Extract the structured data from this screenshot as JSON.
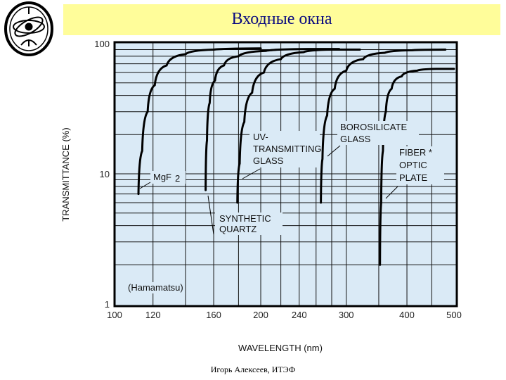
{
  "slide": {
    "title": "Входные окна",
    "footer": "Игорь Алексеев, ИТЭФ",
    "logo_icon": "itep-logo-icon"
  },
  "chart_data": {
    "type": "line",
    "title": "",
    "xlabel": "WAVELENGTH (nm)",
    "ylabel": "TRANSMITTANCE (%)",
    "xscale": "log",
    "yscale": "log",
    "xlim": [
      100,
      500
    ],
    "ylim": [
      1,
      100
    ],
    "xticks": [
      100,
      120,
      160,
      200,
      240,
      300,
      400,
      500
    ],
    "xtick_labels": [
      "100",
      "120",
      "160",
      "200",
      "240",
      "300",
      "400",
      "500"
    ],
    "yticks": [
      1,
      10,
      100
    ],
    "ytick_labels": [
      "1",
      "10",
      "100"
    ],
    "grid": true,
    "source_note": "(Hamamatsu)",
    "series": [
      {
        "name": "MgF2",
        "label_lines": [
          "MgF",
          "2"
        ],
        "points": [
          [
            112,
            7
          ],
          [
            114,
            15
          ],
          [
            117,
            30
          ],
          [
            121,
            48
          ],
          [
            128,
            68
          ],
          [
            140,
            83
          ],
          [
            160,
            90
          ],
          [
            200,
            92
          ]
        ]
      },
      {
        "name": "SYNTHETIC QUARTZ",
        "label_lines": [
          "SYNTHETIC",
          "QUARTZ"
        ],
        "points": [
          [
            154,
            7.5
          ],
          [
            155,
            18
          ],
          [
            157,
            35
          ],
          [
            161,
            52
          ],
          [
            168,
            68
          ],
          [
            180,
            80
          ],
          [
            205,
            88
          ],
          [
            250,
            91
          ],
          [
            290,
            91
          ]
        ]
      },
      {
        "name": "UV-TRANSMITTING GLASS",
        "label_lines": [
          "UV-",
          "TRANSMITTING",
          "GLASS"
        ],
        "points": [
          [
            179,
            6
          ],
          [
            181,
            12
          ],
          [
            185,
            25
          ],
          [
            192,
            42
          ],
          [
            203,
            60
          ],
          [
            220,
            76
          ],
          [
            245,
            86
          ],
          [
            280,
            90
          ],
          [
            320,
            90
          ]
        ]
      },
      {
        "name": "BOROSILICATE GLASS",
        "label_lines": [
          "BOROSILICATE",
          "GLASS"
        ],
        "points": [
          [
            266,
            6
          ],
          [
            268,
            13
          ],
          [
            274,
            28
          ],
          [
            284,
            45
          ],
          [
            300,
            62
          ],
          [
            325,
            76
          ],
          [
            360,
            85
          ],
          [
            410,
            89
          ],
          [
            480,
            90
          ]
        ]
      },
      {
        "name": "FIBER OPTIC PLATE",
        "label_lines": [
          "FIBER *",
          "OPTIC",
          "PLATE"
        ],
        "points": [
          [
            352,
            2
          ],
          [
            354,
            6
          ],
          [
            357,
            15
          ],
          [
            362,
            30
          ],
          [
            372,
            45
          ],
          [
            390,
            56
          ],
          [
            420,
            62
          ],
          [
            460,
            64
          ],
          [
            500,
            64
          ]
        ]
      }
    ]
  }
}
